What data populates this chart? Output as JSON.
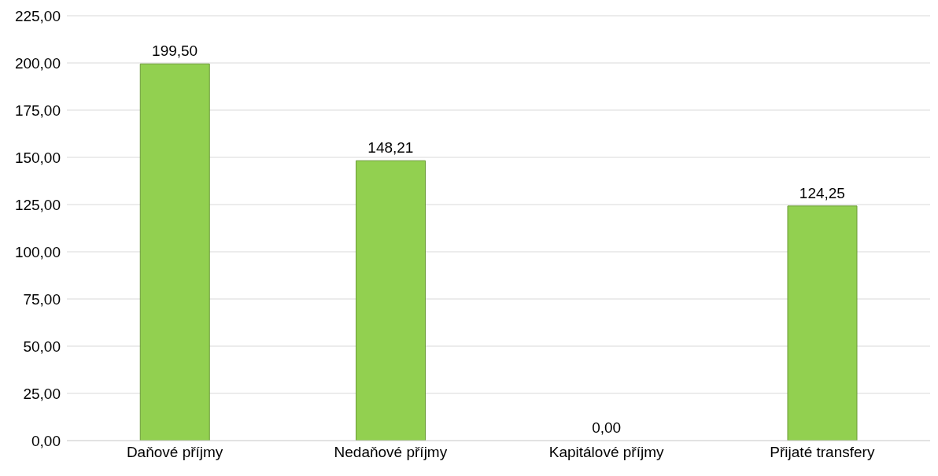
{
  "chart_data": {
    "type": "bar",
    "categories": [
      "Daňové příjmy",
      "Nedaňové příjmy",
      "Kapitálové příjmy",
      "Přijaté transfery"
    ],
    "values": [
      199.5,
      148.21,
      0,
      124.25
    ],
    "value_labels": [
      "199,50",
      "148,21",
      "0,00",
      "124,25"
    ],
    "color": "#92d050",
    "ylim": [
      0,
      225
    ],
    "yticks": [
      {
        "value": 0,
        "label": "0,00"
      },
      {
        "value": 25,
        "label": "25,00"
      },
      {
        "value": 50,
        "label": "50,00"
      },
      {
        "value": 75,
        "label": "75,00"
      },
      {
        "value": 100,
        "label": "100,00"
      },
      {
        "value": 125,
        "label": "125,00"
      },
      {
        "value": 150,
        "label": "150,00"
      },
      {
        "value": 175,
        "label": "175,00"
      },
      {
        "value": 200,
        "label": "200,00"
      },
      {
        "value": 225,
        "label": "225,00"
      }
    ],
    "grid": "y",
    "legend": false
  }
}
